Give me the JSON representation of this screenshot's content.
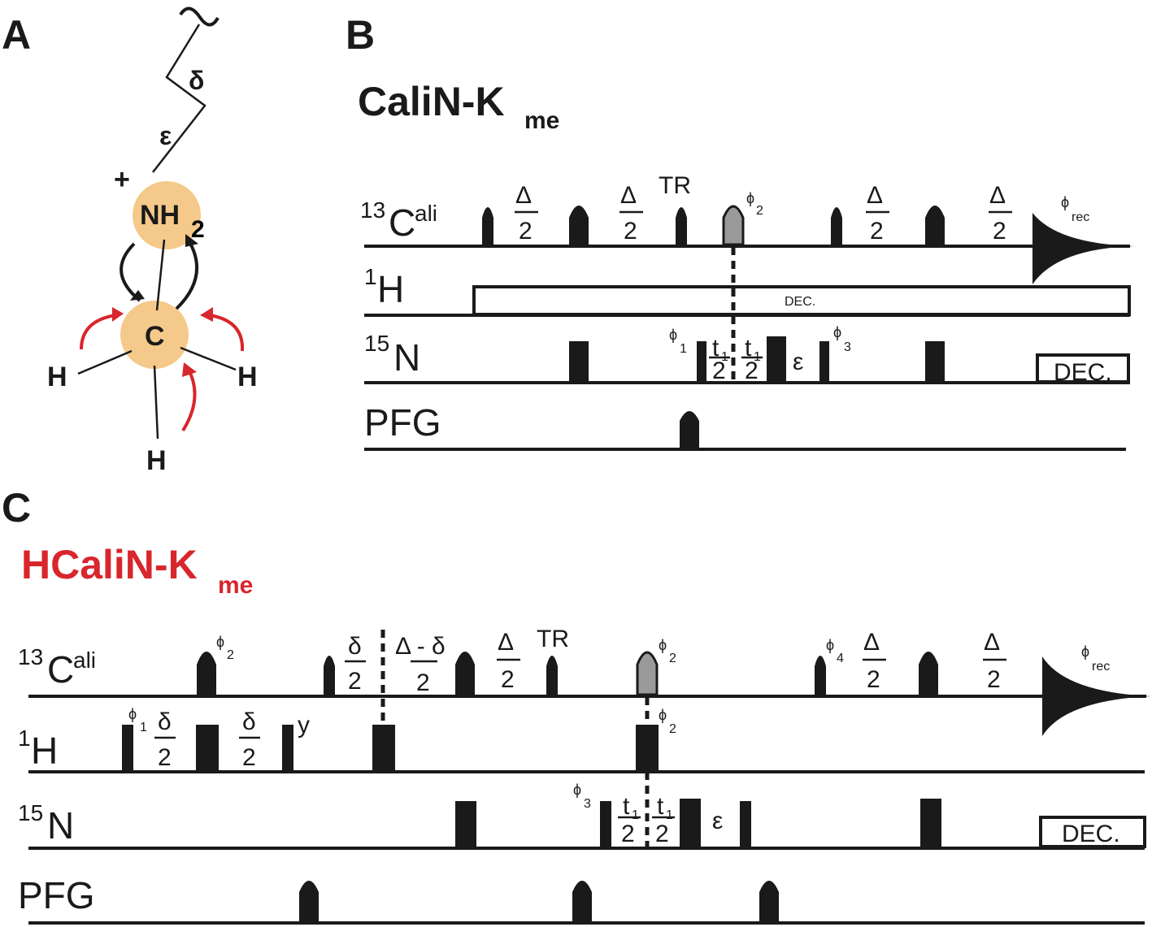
{
  "panels": {
    "a": {
      "letter": "A"
    },
    "b": {
      "letter": "B",
      "title": "CaliN-K",
      "title_sub": "me"
    },
    "c": {
      "letter": "C",
      "title": "HCaliN-K",
      "title_sub": "me"
    }
  },
  "colors": {
    "accent_red": "#d8262c",
    "atom_fill": "#f5c98a",
    "grey_pulse": "#9a9a9a"
  },
  "molecule": {
    "charge": "+",
    "nh": "NH",
    "nh_sub": "2",
    "carbon": "C",
    "hydrogen": "H",
    "epsilon": "ε",
    "delta": "δ"
  },
  "channels": {
    "c13_sup": "13",
    "c13_main": "C",
    "c13_suffix": "ali",
    "h1_sup": "1",
    "h1_main": "H",
    "n15_sup": "15",
    "n15_main": "N",
    "pfg": "PFG"
  },
  "labels": {
    "Delta": "Δ",
    "two": "2",
    "tr": "TR",
    "dec": "DEC.",
    "phi": "ϕ",
    "rec": "rec",
    "eps": "ε",
    "t": "t",
    "one": "1",
    "three": "3",
    "four": "4",
    "delta": "δ",
    "delta_minus": "Δ - δ",
    "y": "y"
  }
}
